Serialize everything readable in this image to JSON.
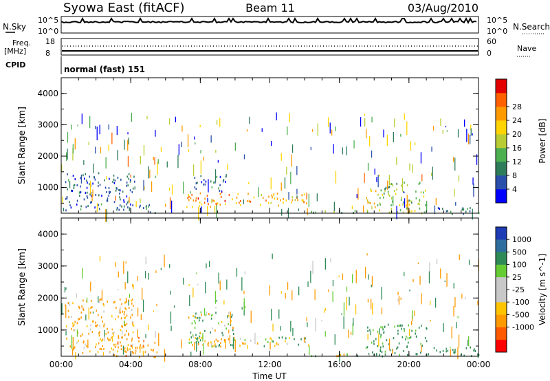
{
  "header": {
    "station": "Syowa East (fitACF)",
    "beam": "Beam 11",
    "date": "03/Aug/2010"
  },
  "info_panel": {
    "nsky_label": "N.Sky",
    "nsearch_label": "N.Search",
    "left_ticks": [
      "10^5",
      "10^0"
    ],
    "right_ticks": [
      "10^5",
      "10^0"
    ],
    "freq_label": "Freq.",
    "freq_unit": "[MHz]",
    "freq_ticks": [
      "18",
      "8"
    ],
    "nave_label": "Nave",
    "nave_ticks": [
      "60",
      "0"
    ],
    "cpid_label": "CPID",
    "cpid_text": "normal (fast) 151"
  },
  "colors": {
    "power_scale": [
      "#0000ff",
      "#2a4faa",
      "#2e7d5a",
      "#4caf50",
      "#b9cc33",
      "#ffd400",
      "#ff9b00",
      "#ff6000",
      "#e20000"
    ],
    "velocity_scale": [
      "#ff0000",
      "#ff5a00",
      "#ff9a00",
      "#ffc400",
      "#c8c8c8",
      "#c8c8c8",
      "#66cc33",
      "#2e8b57",
      "#2e6e9e",
      "#1e3cb4"
    ]
  },
  "chart_data": [
    {
      "type": "heatmap",
      "title": "",
      "quantity": "Power",
      "xlabel": "",
      "ylabel": "Slant Range [km]",
      "x_ticks": [
        "00:00",
        "04:00",
        "08:00",
        "12:00",
        "16:00",
        "20:00",
        "00:00"
      ],
      "x_hours": [
        0,
        4,
        8,
        12,
        16,
        20,
        24
      ],
      "xlim": [
        0,
        24
      ],
      "ylim": [
        180,
        4500
      ],
      "y_ticks": [
        1000,
        2000,
        3000,
        4000
      ],
      "colorbar_label": "Power [dB]",
      "colorbar_ticks": [
        "4",
        "8",
        "12",
        "16",
        "20",
        "24",
        "28"
      ],
      "colorbar_range": [
        0,
        32
      ],
      "regions": [
        {
          "t0": 0.2,
          "t1": 4.2,
          "r0": 300,
          "r1": 1500,
          "value": 6
        },
        {
          "t0": 4.0,
          "t1": 5.5,
          "r0": 200,
          "r1": 500,
          "value": 10
        },
        {
          "t0": 7.2,
          "t1": 9.8,
          "r0": 400,
          "r1": 900,
          "value": 24
        },
        {
          "t0": 7.5,
          "t1": 9.5,
          "r0": 900,
          "r1": 1400,
          "value": 7
        },
        {
          "t0": 9.8,
          "t1": 14.2,
          "r0": 450,
          "r1": 850,
          "value": 22
        },
        {
          "t0": 14.2,
          "t1": 17.5,
          "r0": 180,
          "r1": 300,
          "value": 12
        },
        {
          "t0": 17.5,
          "t1": 18.5,
          "r0": 200,
          "r1": 1000,
          "value": 18
        },
        {
          "t0": 18.5,
          "t1": 21.0,
          "r0": 200,
          "r1": 1200,
          "value": 14
        },
        {
          "t0": 21.0,
          "t1": 24.0,
          "r0": 180,
          "r1": 400,
          "value": 8
        }
      ]
    },
    {
      "type": "heatmap",
      "title": "",
      "quantity": "Velocity",
      "xlabel": "Time UT",
      "ylabel": "Slant Range [km]",
      "x_ticks": [
        "00:00",
        "04:00",
        "08:00",
        "12:00",
        "16:00",
        "20:00",
        "00:00"
      ],
      "x_hours": [
        0,
        4,
        8,
        12,
        16,
        20,
        24
      ],
      "xlim": [
        0,
        24
      ],
      "ylim": [
        180,
        4500
      ],
      "y_ticks": [
        1000,
        2000,
        3000,
        4000
      ],
      "colorbar_label": "Velocity [m s^-1]",
      "colorbar_ticks": [
        "1000",
        "500",
        "100",
        "25",
        "-25",
        "-100",
        "-500",
        "-1000"
      ],
      "regions": [
        {
          "t0": 0.2,
          "t1": 4.2,
          "r0": 300,
          "r1": 2000,
          "value": -200
        },
        {
          "t0": 3.0,
          "t1": 5.5,
          "r0": 180,
          "r1": 800,
          "value": -400
        },
        {
          "t0": 7.2,
          "t1": 10.0,
          "r0": 500,
          "r1": 1600,
          "value": 60
        },
        {
          "t0": 7.5,
          "t1": 11.0,
          "r0": 500,
          "r1": 800,
          "value": -80
        },
        {
          "t0": 11.0,
          "t1": 14.2,
          "r0": 500,
          "r1": 800,
          "value": 80
        },
        {
          "t0": 14.2,
          "t1": 17.5,
          "r0": 180,
          "r1": 300,
          "value": 40
        },
        {
          "t0": 17.5,
          "t1": 21.0,
          "r0": 200,
          "r1": 1200,
          "value": 200
        },
        {
          "t0": 21.0,
          "t1": 24.0,
          "r0": 180,
          "r1": 500,
          "value": 300
        }
      ]
    }
  ]
}
